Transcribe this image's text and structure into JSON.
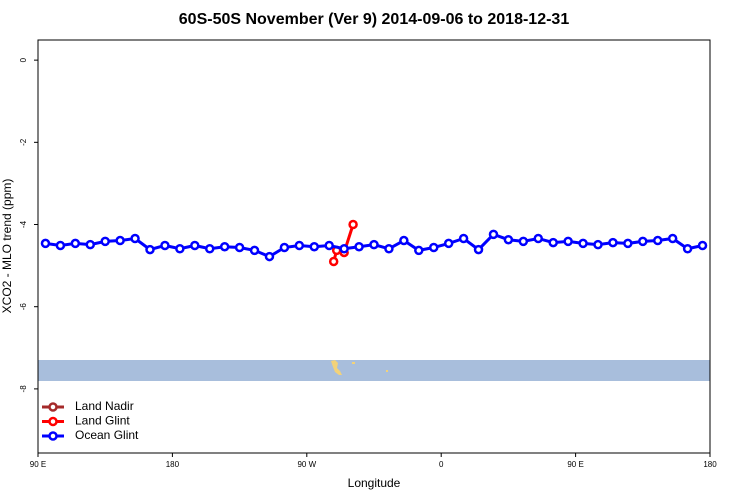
{
  "chart_data": {
    "type": "line",
    "title": "60S-50S November (Ver 9)   2014-09-06 to 2018-12-31",
    "x_label": "Longitude",
    "y_label": "XCO2 - MLO trend (ppm)",
    "xlim": [
      90,
      540
    ],
    "ylim": [
      -9.56,
      0.49
    ],
    "xticks": [
      {
        "value": 90,
        "label": "90 E"
      },
      180,
      {
        "value": 270,
        "label": "90 W"
      },
      {
        "value": 360,
        "label": "0"
      },
      {
        "value": 450,
        "label": "90 E"
      },
      {
        "value": 540,
        "label": "180"
      }
    ],
    "yticks": [
      0,
      -2,
      -4,
      -6,
      -8
    ],
    "legend": "bottom-left",
    "series": [
      {
        "name": "Land Nadir",
        "color": "#a52a2a",
        "x": [],
        "values": []
      },
      {
        "name": "Land Glint",
        "color": "#ff0000",
        "x": [
          288,
          290,
          295,
          301
        ],
        "values": [
          -4.9,
          -4.63,
          -4.68,
          -4.0
        ]
      },
      {
        "name": "Ocean Glint",
        "color": "#0000ff",
        "x": [
          95,
          105,
          115,
          125,
          135,
          145,
          155,
          165,
          175,
          185,
          195,
          205,
          215,
          225,
          235,
          245,
          255,
          265,
          275,
          285,
          295,
          305,
          315,
          325,
          335,
          345,
          355,
          365,
          375,
          385,
          395,
          405,
          415,
          425,
          435,
          445,
          455,
          465,
          475,
          485,
          495,
          505,
          515,
          525,
          535
        ],
        "values": [
          -4.46,
          -4.51,
          -4.46,
          -4.49,
          -4.41,
          -4.39,
          -4.34,
          -4.61,
          -4.51,
          -4.59,
          -4.51,
          -4.59,
          -4.54,
          -4.56,
          -4.63,
          -4.78,
          -4.56,
          -4.51,
          -4.54,
          -4.51,
          -4.59,
          -4.54,
          -4.49,
          -4.59,
          -4.39,
          -4.63,
          -4.56,
          -4.46,
          -4.34,
          -4.61,
          -4.24,
          -4.37,
          -4.41,
          -4.34,
          -4.44,
          -4.41,
          -4.46,
          -4.49,
          -4.44,
          -4.46,
          -4.41,
          -4.39,
          -4.34,
          -4.59,
          -4.51
        ]
      }
    ]
  }
}
